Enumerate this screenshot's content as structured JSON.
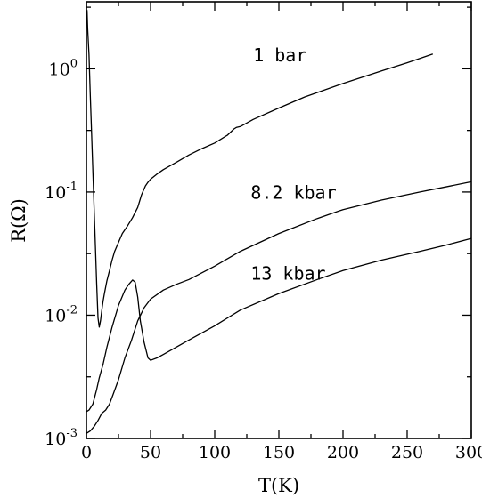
{
  "chart_data": {
    "type": "line",
    "xlabel": "T(K)",
    "ylabel": "R(Ω)",
    "xlim": [
      0,
      300
    ],
    "ylim": [
      0.001,
      3.5
    ],
    "yscale": "log",
    "grid": false,
    "x_ticks": [
      0,
      50,
      100,
      150,
      200,
      250,
      300
    ],
    "x_tick_labels": [
      "0",
      "50",
      "100",
      "150",
      "200",
      "250",
      "300"
    ],
    "y_ticks": [
      {
        "value": 1,
        "base": "10",
        "exp": "0"
      },
      {
        "value": 0.1,
        "base": "10",
        "exp": "-1"
      },
      {
        "value": 0.01,
        "base": "10",
        "exp": "-2"
      },
      {
        "value": 0.001,
        "base": "10",
        "exp": "-3"
      }
    ],
    "series": [
      {
        "name": "1 bar",
        "label_position": [
          130,
          1.15
        ],
        "x": [
          0.5,
          1,
          2,
          3,
          4,
          5,
          6,
          7,
          8,
          9,
          10,
          11,
          12,
          13,
          14,
          16,
          18,
          20,
          22,
          25,
          28,
          32,
          36,
          40,
          43,
          46,
          48,
          50,
          55,
          60,
          70,
          80,
          90,
          100,
          110,
          115,
          117,
          120,
          130,
          150,
          170,
          200,
          230,
          250,
          270
        ],
        "y": [
          3.0,
          2.1,
          1.3,
          0.62,
          0.3,
          0.15,
          0.075,
          0.036,
          0.018,
          0.0095,
          0.008,
          0.009,
          0.011,
          0.013,
          0.015,
          0.019,
          0.023,
          0.028,
          0.033,
          0.039,
          0.046,
          0.053,
          0.062,
          0.075,
          0.095,
          0.112,
          0.12,
          0.127,
          0.14,
          0.152,
          0.174,
          0.2,
          0.225,
          0.25,
          0.29,
          0.325,
          0.335,
          0.34,
          0.388,
          0.48,
          0.59,
          0.76,
          0.96,
          1.12,
          1.32
        ]
      },
      {
        "name": "8.2 kbar",
        "label_position": [
          128,
          0.088
        ],
        "x": [
          0,
          2,
          5,
          8,
          10,
          13,
          16,
          20,
          25,
          30,
          33,
          36,
          38,
          40,
          42,
          45,
          48,
          50,
          55,
          60,
          70,
          80,
          100,
          120,
          150,
          180,
          200,
          230,
          260,
          280,
          300
        ],
        "y": [
          0.00165,
          0.0017,
          0.0019,
          0.0025,
          0.0031,
          0.004,
          0.0055,
          0.008,
          0.012,
          0.016,
          0.0178,
          0.0193,
          0.0185,
          0.014,
          0.009,
          0.006,
          0.0045,
          0.0043,
          0.0045,
          0.0048,
          0.0055,
          0.0063,
          0.0082,
          0.011,
          0.015,
          0.0195,
          0.023,
          0.028,
          0.033,
          0.037,
          0.042
        ]
      },
      {
        "name": "13 kbar",
        "label_position": [
          128,
          0.0195
        ],
        "x": [
          0,
          3,
          6,
          9,
          12,
          15,
          18,
          21,
          25,
          30,
          35,
          40,
          45,
          50,
          60,
          70,
          80,
          100,
          120,
          150,
          180,
          200,
          230,
          260,
          280,
          300
        ],
        "y": [
          0.0011,
          0.00115,
          0.00125,
          0.0014,
          0.0016,
          0.0017,
          0.0019,
          0.0023,
          0.003,
          0.0045,
          0.0062,
          0.009,
          0.0115,
          0.0135,
          0.016,
          0.0178,
          0.0195,
          0.025,
          0.033,
          0.046,
          0.061,
          0.072,
          0.086,
          0.1,
          0.11,
          0.121
        ]
      }
    ]
  }
}
